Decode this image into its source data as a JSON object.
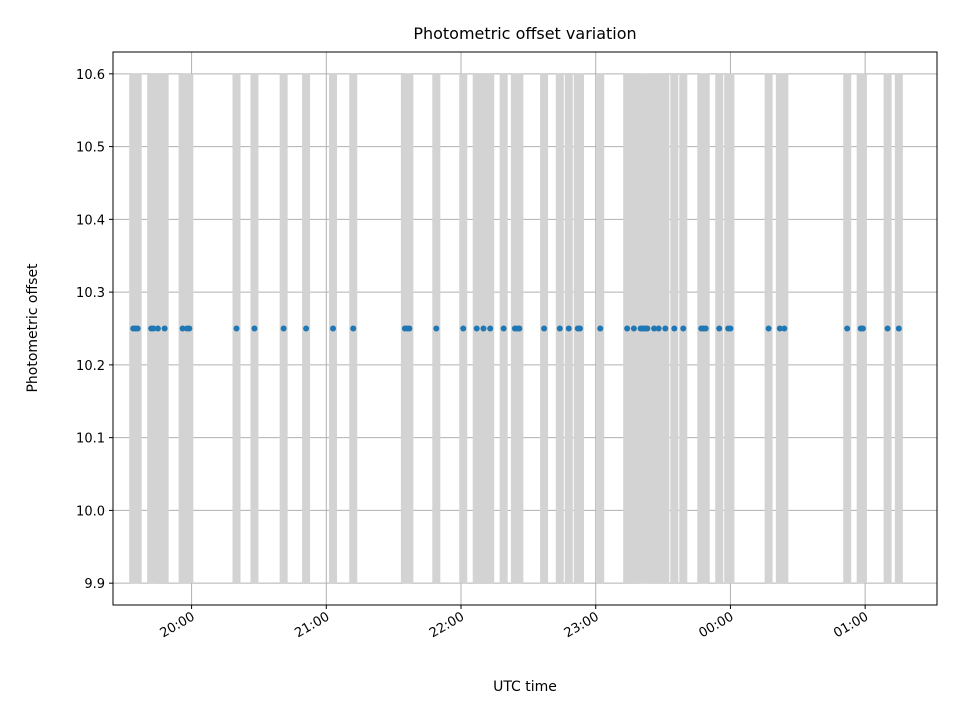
{
  "chart_data": {
    "type": "scatter",
    "title": "Photometric offset variation",
    "xlabel": "UTC time",
    "ylabel": "Photometric offset",
    "grid": true,
    "x_axis_type": "time",
    "xlim": [
      "19:25",
      "01:32"
    ],
    "ylim": [
      9.87,
      10.63
    ],
    "yticks": [
      9.9,
      10.0,
      10.1,
      10.2,
      10.3,
      10.4,
      10.5,
      10.6
    ],
    "ytick_labels": [
      "9.9",
      "10.0",
      "10.1",
      "10.2",
      "10.3",
      "10.4",
      "10.5",
      "10.6"
    ],
    "xticks": [
      "20:00",
      "21:00",
      "22:00",
      "23:00",
      "00:00",
      "01:00"
    ],
    "xtick_labels": [
      "20:00",
      "21:00",
      "22:00",
      "23:00",
      "00:00",
      "01:00"
    ],
    "band_range": [
      9.9,
      10.6
    ],
    "band_color": "#d3d3d3",
    "point_color": "#1f77b4",
    "series": [
      {
        "x": [
          "19:34",
          "19:35",
          "19:36",
          "19:42",
          "19:43",
          "19:45",
          "19:48",
          "19:56",
          "19:58",
          "19:59",
          "20:20",
          "20:28",
          "20:41",
          "20:51",
          "21:03",
          "21:12",
          "21:35",
          "21:36",
          "21:37",
          "21:49",
          "22:01",
          "22:07",
          "22:10",
          "22:13",
          "22:19",
          "22:24",
          "22:25",
          "22:26",
          "22:37",
          "22:44",
          "22:48",
          "22:52",
          "22:53",
          "23:02",
          "23:14",
          "23:17",
          "23:20",
          "23:21",
          "23:22",
          "23:23",
          "23:26",
          "23:28",
          "23:31",
          "23:35",
          "23:39",
          "23:47",
          "23:48",
          "23:49",
          "23:55",
          "23:59",
          "24:00",
          "24:17",
          "24:22",
          "24:24",
          "24:52",
          "24:58",
          "24:59",
          "25:10",
          "25:15"
        ],
        "y": [
          10.25,
          10.25,
          10.25,
          10.25,
          10.25,
          10.25,
          10.25,
          10.25,
          10.25,
          10.25,
          10.25,
          10.25,
          10.25,
          10.25,
          10.25,
          10.25,
          10.25,
          10.25,
          10.25,
          10.25,
          10.25,
          10.25,
          10.25,
          10.25,
          10.25,
          10.25,
          10.25,
          10.25,
          10.25,
          10.25,
          10.25,
          10.25,
          10.25,
          10.25,
          10.25,
          10.25,
          10.25,
          10.25,
          10.25,
          10.25,
          10.25,
          10.25,
          10.25,
          10.25,
          10.25,
          10.25,
          10.25,
          10.25,
          10.25,
          10.25,
          10.25,
          10.25,
          10.25,
          10.25,
          10.25,
          10.25,
          10.25,
          10.25,
          10.25
        ]
      }
    ]
  }
}
